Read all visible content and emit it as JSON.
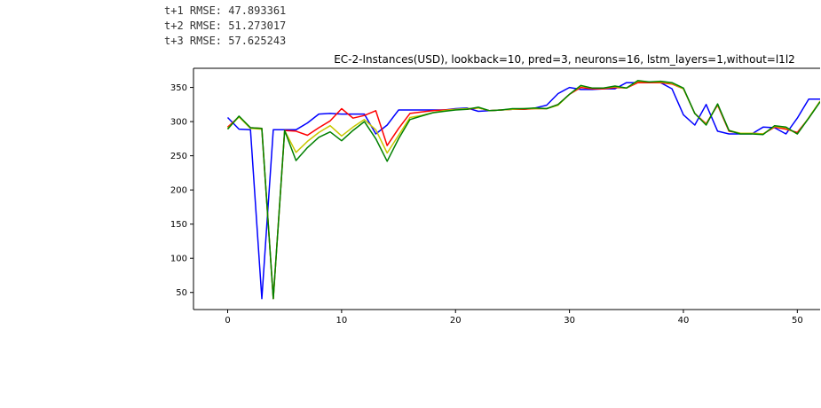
{
  "output_lines": [
    "t+1 RMSE: 47.893361",
    "t+2 RMSE: 51.273017",
    "t+3 RMSE: 57.625243"
  ],
  "chart_data": {
    "type": "line",
    "title": "EC-2-Instances(USD), lookback=10, pred=3, neurons=16, lstm_layers=1,without=l1l2",
    "xlabel": "",
    "ylabel": "",
    "xlim": [
      -3,
      52
    ],
    "ylim": [
      25,
      378
    ],
    "xticks": [
      0,
      10,
      20,
      30,
      40,
      50
    ],
    "yticks": [
      50,
      100,
      150,
      200,
      250,
      300,
      350
    ],
    "grid": false,
    "legend": "none",
    "series": [
      {
        "color": "#0000ff",
        "x": [
          0,
          1,
          2,
          3,
          4,
          5,
          6,
          7,
          8,
          9,
          10,
          11,
          12,
          13,
          14,
          15,
          16,
          17,
          18,
          19,
          20,
          21,
          22,
          23,
          24,
          25,
          26,
          27,
          28,
          29,
          30,
          31,
          32,
          33,
          34,
          35,
          36,
          37,
          38,
          39,
          40,
          41,
          42,
          43,
          44,
          45,
          46,
          47,
          48,
          49,
          50,
          51,
          52
        ],
        "values": [
          306,
          289,
          288,
          41,
          288,
          288,
          288,
          298,
          311,
          312,
          311,
          311,
          311,
          282,
          295,
          317,
          317,
          317,
          317,
          317,
          319,
          320,
          315,
          316,
          317,
          318,
          318,
          320,
          324,
          341,
          350,
          347,
          347,
          348,
          348,
          357,
          357,
          357,
          357,
          348,
          310,
          295,
          325,
          286,
          282,
          282,
          282,
          292,
          291,
          282,
          305,
          333,
          333
        ]
      },
      {
        "color": "#ff0000",
        "x": [
          0,
          1,
          2,
          3,
          4,
          5,
          6,
          7,
          8,
          9,
          10,
          11,
          12,
          13,
          14,
          15,
          16,
          17,
          18,
          19,
          20,
          21,
          22,
          23,
          24,
          25,
          26,
          27,
          28,
          29,
          30,
          31,
          32,
          33,
          34,
          35,
          36,
          37,
          38,
          39,
          40,
          41,
          42,
          43,
          44,
          45,
          46,
          47,
          48,
          49,
          50,
          51,
          52
        ],
        "values": [
          292,
          307,
          291,
          290,
          41,
          287,
          286,
          280,
          291,
          301,
          319,
          305,
          309,
          316,
          265,
          290,
          312,
          314,
          316,
          317,
          318,
          318,
          320,
          316,
          317,
          318,
          318,
          319,
          319,
          325,
          340,
          350,
          348,
          348,
          350,
          349,
          357,
          357,
          357,
          355,
          348,
          312,
          297,
          324,
          286,
          283,
          283,
          282,
          292,
          289,
          284,
          305,
          330
        ]
      },
      {
        "color": "#c8c800",
        "x": [
          0,
          1,
          2,
          3,
          4,
          5,
          6,
          7,
          8,
          9,
          10,
          11,
          12,
          13,
          14,
          15,
          16,
          17,
          18,
          19,
          20,
          21,
          22,
          23,
          24,
          25,
          26,
          27,
          28,
          29,
          30,
          31,
          32,
          33,
          34,
          35,
          36,
          37,
          38,
          39,
          40,
          41,
          42,
          43,
          44,
          45,
          46,
          47,
          48,
          49,
          50,
          51,
          52
        ],
        "values": [
          290,
          307,
          290,
          289,
          41,
          287,
          255,
          271,
          284,
          294,
          279,
          292,
          303,
          288,
          254,
          280,
          306,
          309,
          313,
          316,
          318,
          319,
          320,
          316,
          317,
          318,
          319,
          319,
          319,
          324,
          340,
          352,
          349,
          349,
          351,
          349,
          359,
          358,
          358,
          356,
          348,
          312,
          296,
          325,
          287,
          283,
          283,
          282,
          293,
          291,
          282,
          306,
          330
        ]
      },
      {
        "color": "#008000",
        "x": [
          0,
          1,
          2,
          3,
          4,
          5,
          6,
          7,
          8,
          9,
          10,
          11,
          12,
          13,
          14,
          15,
          16,
          17,
          18,
          19,
          20,
          21,
          22,
          23,
          24,
          25,
          26,
          27,
          28,
          29,
          30,
          31,
          32,
          33,
          34,
          35,
          36,
          37,
          38,
          39,
          40,
          41,
          42,
          43,
          44,
          45,
          46,
          47,
          48,
          49,
          50,
          51,
          52
        ],
        "values": [
          289,
          308,
          291,
          290,
          41,
          287,
          243,
          262,
          277,
          285,
          272,
          287,
          300,
          275,
          242,
          275,
          303,
          308,
          313,
          315,
          317,
          318,
          321,
          316,
          317,
          319,
          319,
          320,
          319,
          325,
          340,
          353,
          349,
          349,
          352,
          349,
          360,
          358,
          359,
          357,
          349,
          312,
          295,
          326,
          287,
          282,
          282,
          281,
          294,
          292,
          282,
          305,
          329
        ]
      }
    ]
  }
}
